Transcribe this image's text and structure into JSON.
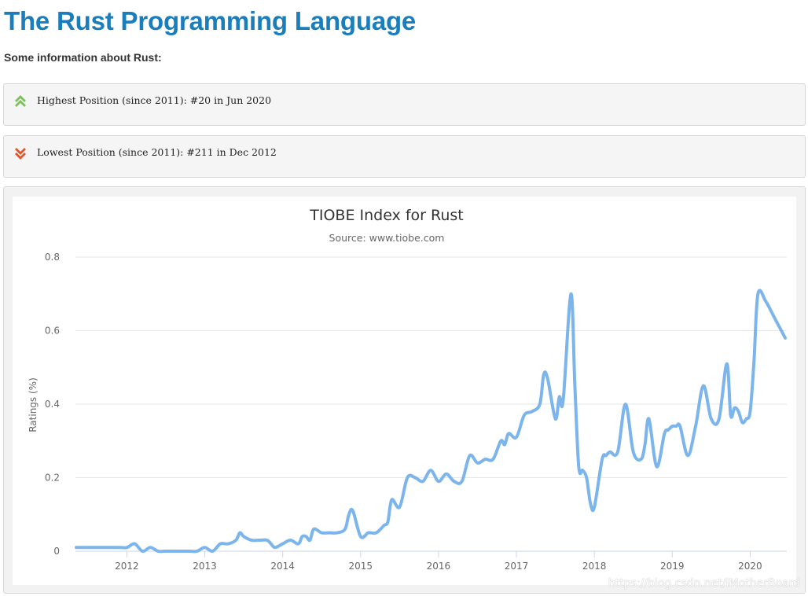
{
  "page": {
    "title": "The Rust Programming Language",
    "intro": "Some information about Rust:",
    "highest": {
      "text": "Highest Position (since 2011): #20 in Jun 2020",
      "icon": "double-chevron-up-icon",
      "color": "#7bc05a"
    },
    "lowest": {
      "text": "Lowest Position (since 2011): #211 in Dec 2012",
      "icon": "double-chevron-down-icon",
      "color": "#e0562a"
    },
    "watermark": "https://blog.csdn.net/iMotherBoard"
  },
  "chart_data": {
    "type": "line",
    "title": "TIOBE Index for Rust",
    "subtitle": "Source: www.tiobe.com",
    "xlabel": "",
    "ylabel": "Ratings (%)",
    "ylim": [
      0,
      0.8
    ],
    "yticks": [
      0,
      0.2,
      0.4,
      0.6,
      0.8
    ],
    "ytick_labels": [
      "0",
      "0.2",
      "0.4",
      "0.6",
      "0.8"
    ],
    "xlim": [
      2011.34,
      2020.47
    ],
    "xticks": [
      2012,
      2013,
      2014,
      2015,
      2016,
      2017,
      2018,
      2019,
      2020
    ],
    "xtick_labels": [
      "2012",
      "2013",
      "2014",
      "2015",
      "2016",
      "2017",
      "2018",
      "2019",
      "2020"
    ],
    "grid": true,
    "legend": "none",
    "color": "#7cb5ec",
    "series": [
      {
        "x": [
          2011.35,
          2011.6,
          2011.9,
          2012.0,
          2012.1,
          2012.2,
          2012.3,
          2012.4,
          2012.5,
          2012.6,
          2012.8,
          2012.9,
          2013.0,
          2013.1,
          2013.2,
          2013.3,
          2013.4,
          2013.45,
          2013.5,
          2013.6,
          2013.7,
          2013.8,
          2013.85,
          2013.9,
          2014.0,
          2014.1,
          2014.2,
          2014.25,
          2014.3,
          2014.35,
          2014.4,
          2014.5,
          2014.6,
          2014.7,
          2014.8,
          2014.85,
          2014.9,
          2015.0,
          2015.1,
          2015.2,
          2015.3,
          2015.35,
          2015.4,
          2015.5,
          2015.6,
          2015.7,
          2015.8,
          2015.9,
          2016.0,
          2016.1,
          2016.2,
          2016.3,
          2016.4,
          2016.5,
          2016.6,
          2016.7,
          2016.8,
          2016.85,
          2016.9,
          2017.0,
          2017.1,
          2017.2,
          2017.3,
          2017.35,
          2017.4,
          2017.5,
          2017.55,
          2017.6,
          2017.7,
          2017.75,
          2017.8,
          2017.85,
          2017.9,
          2017.95,
          2018.0,
          2018.1,
          2018.15,
          2018.2,
          2018.3,
          2018.4,
          2018.5,
          2018.6,
          2018.65,
          2018.7,
          2018.8,
          2018.9,
          2018.95,
          2019.0,
          2019.05,
          2019.1,
          2019.2,
          2019.3,
          2019.4,
          2019.5,
          2019.6,
          2019.7,
          2019.75,
          2019.8,
          2019.85,
          2019.9,
          2019.95,
          2020.0,
          2020.05,
          2020.1,
          2020.2,
          2020.3,
          2020.35,
          2020.4,
          2020.45
        ],
        "y": [
          0.01,
          0.01,
          0.01,
          0.01,
          0.02,
          0.0,
          0.01,
          0.0,
          0.0,
          0.0,
          0.0,
          0.0,
          0.01,
          0.0,
          0.02,
          0.02,
          0.03,
          0.05,
          0.04,
          0.03,
          0.03,
          0.03,
          0.02,
          0.01,
          0.02,
          0.03,
          0.02,
          0.04,
          0.04,
          0.03,
          0.06,
          0.05,
          0.05,
          0.05,
          0.06,
          0.1,
          0.11,
          0.04,
          0.05,
          0.05,
          0.07,
          0.08,
          0.14,
          0.12,
          0.2,
          0.2,
          0.19,
          0.22,
          0.19,
          0.21,
          0.19,
          0.19,
          0.26,
          0.24,
          0.25,
          0.25,
          0.3,
          0.29,
          0.32,
          0.31,
          0.37,
          0.38,
          0.4,
          0.48,
          0.47,
          0.36,
          0.42,
          0.41,
          0.7,
          0.45,
          0.23,
          0.22,
          0.2,
          0.13,
          0.12,
          0.25,
          0.26,
          0.27,
          0.27,
          0.4,
          0.27,
          0.25,
          0.29,
          0.36,
          0.23,
          0.32,
          0.33,
          0.34,
          0.34,
          0.34,
          0.26,
          0.34,
          0.45,
          0.36,
          0.36,
          0.51,
          0.37,
          0.39,
          0.38,
          0.35,
          0.36,
          0.38,
          0.52,
          0.7,
          0.68,
          0.64,
          0.62,
          0.6,
          0.58
        ]
      }
    ]
  }
}
